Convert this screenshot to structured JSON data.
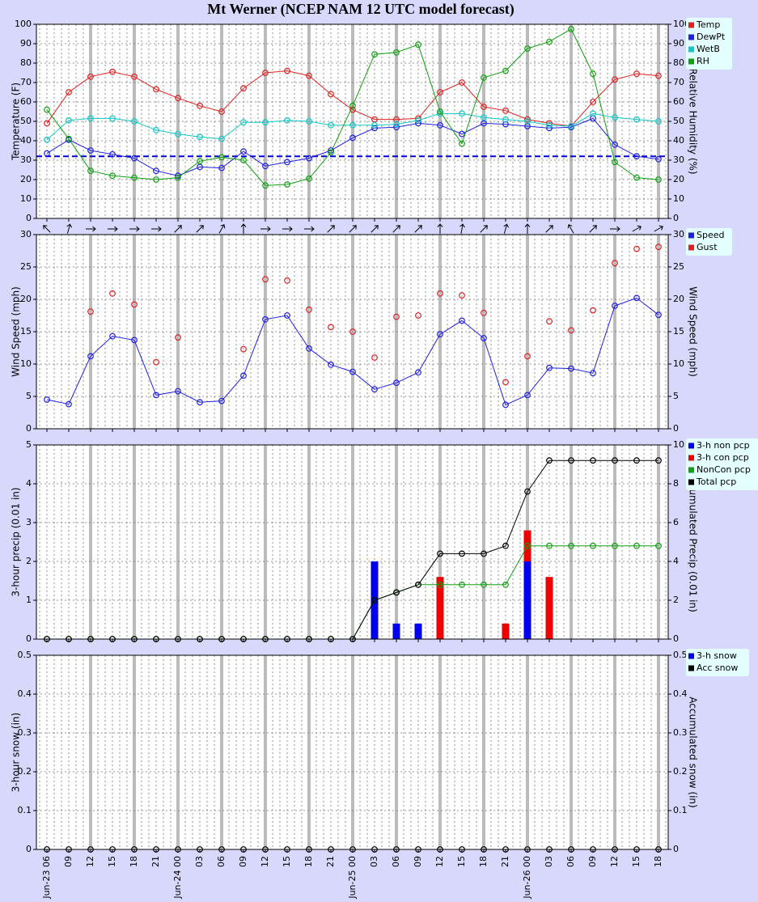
{
  "chart_data": [
    {
      "type": "line",
      "title": "Mt Werner (NCEP NAM 12 UTC model forecast)",
      "ylabel": "Temperature (F)",
      "y2label": "Relative Humidity (%)",
      "ylim": [
        0,
        100
      ],
      "yticks": [
        0,
        10,
        20,
        30,
        40,
        50,
        60,
        70,
        80,
        90,
        100
      ],
      "y2lim": [
        0,
        100
      ],
      "y2ticks": [
        0,
        10,
        20,
        30,
        40,
        50,
        60,
        70,
        80,
        90,
        100
      ],
      "hline": {
        "value": 32,
        "color": "#0000dd"
      },
      "series": [
        {
          "name": "Temp",
          "color": "#e02020",
          "type": "line",
          "values": [
            49,
            65,
            73,
            75.5,
            73,
            66.5,
            62,
            58,
            55,
            67,
            75,
            76,
            73.5,
            64,
            56,
            51,
            51,
            51.5,
            65,
            70,
            57.5,
            55.5,
            51,
            49,
            47.5,
            60,
            71.5,
            74.5,
            73.5
          ]
        },
        {
          "name": "DewPt",
          "color": "#2020e0",
          "type": "line",
          "values": [
            33.5,
            40.5,
            35,
            33,
            31,
            24.5,
            22,
            26.5,
            26,
            34.5,
            27,
            29,
            31,
            35,
            41.5,
            46.5,
            47,
            49,
            48,
            43.5,
            49,
            48.5,
            47.5,
            46.5,
            47,
            51.5,
            38,
            32,
            30.5
          ]
        },
        {
          "name": "WetB",
          "color": "#10c8c8",
          "type": "line",
          "values": [
            40.5,
            50.5,
            51.5,
            51.5,
            50,
            45.5,
            43.5,
            42,
            41,
            49.5,
            49.5,
            50.5,
            50,
            48,
            48,
            48,
            48.5,
            50.5,
            54,
            54,
            52,
            51,
            50,
            48,
            47.5,
            54,
            52,
            51,
            50
          ]
        },
        {
          "name": "RH",
          "color": "#10a010",
          "type": "line",
          "axis": "y2",
          "values": [
            56,
            41,
            24.5,
            22,
            21,
            20,
            21,
            29.5,
            31.5,
            30,
            17,
            17.5,
            20.5,
            34,
            58,
            84.5,
            85.5,
            89.5,
            55,
            38.5,
            72.5,
            76,
            87.5,
            91,
            97.5,
            74.5,
            29,
            21,
            20
          ]
        }
      ]
    },
    {
      "type": "line",
      "ylabel": "Wind Speed (mph)",
      "y2label": "Wind Speed (mph)",
      "ylim": [
        0,
        30
      ],
      "yticks": [
        0,
        5,
        10,
        15,
        20,
        25,
        30
      ],
      "y2lim": [
        0,
        30
      ],
      "y2ticks": [
        0,
        5,
        10,
        15,
        20,
        25,
        30
      ],
      "arrow_angles": [
        315,
        15,
        90,
        90,
        90,
        90,
        45,
        45,
        30,
        0,
        90,
        90,
        90,
        45,
        45,
        45,
        45,
        45,
        0,
        10,
        45,
        15,
        0,
        45,
        330,
        45,
        90,
        60,
        60
      ],
      "series": [
        {
          "name": "Speed",
          "color": "#2020e0",
          "type": "line",
          "values": [
            4.5,
            3.8,
            11.2,
            14.3,
            13.7,
            5.2,
            5.8,
            4.1,
            4.3,
            8.2,
            16.9,
            17.5,
            12.4,
            9.9,
            8.8,
            6.1,
            7.1,
            8.7,
            14.6,
            16.7,
            14.0,
            3.7,
            5.2,
            9.4,
            9.3,
            8.6,
            19.0,
            20.2,
            17.6
          ]
        },
        {
          "name": "Gust",
          "color": "#e02020",
          "type": "scatter",
          "values": [
            null,
            null,
            18.1,
            20.9,
            19.2,
            10.3,
            14.1,
            null,
            null,
            12.3,
            23.1,
            22.9,
            18.4,
            15.7,
            15.0,
            11.0,
            17.3,
            17.5,
            20.9,
            20.6,
            17.9,
            7.2,
            11.2,
            16.6,
            15.2,
            18.3,
            25.6,
            27.8,
            28.1
          ]
        }
      ]
    },
    {
      "type": "bar",
      "ylabel": "3-hour precip (0.01 in)",
      "y2label": "Accumulated Precip (0.01 in)",
      "ylim": [
        0,
        5
      ],
      "yticks": [
        0,
        1,
        2,
        3,
        4,
        5
      ],
      "y2lim": [
        0,
        10
      ],
      "y2ticks": [
        0,
        2,
        4,
        6,
        8,
        10
      ],
      "series": [
        {
          "name": "3-h non pcp",
          "color": "#0000ee",
          "type": "bar",
          "values": [
            0,
            0,
            0,
            0,
            0,
            0,
            0,
            0,
            0,
            0,
            0,
            0,
            0,
            0,
            0,
            2.0,
            0.4,
            0.4,
            0,
            0,
            0,
            0,
            2.0,
            0,
            0,
            0,
            0,
            0,
            0
          ]
        },
        {
          "name": "3-h con pcp",
          "color": "#ee0000",
          "type": "bar",
          "values": [
            0,
            0,
            0,
            0,
            0,
            0,
            0,
            0,
            0,
            0,
            0,
            0,
            0,
            0,
            0,
            0,
            0,
            0,
            1.6,
            0,
            0,
            0.4,
            0.8,
            1.6,
            0,
            0,
            0,
            0,
            0
          ]
        },
        {
          "name": "NonCon pcp",
          "color": "#10a010",
          "type": "line",
          "axis": "y2",
          "values": [
            0,
            0,
            0,
            0,
            0,
            0,
            0,
            0,
            0,
            0,
            0,
            0,
            0,
            0,
            0,
            2.0,
            2.4,
            2.8,
            2.8,
            2.8,
            2.8,
            2.8,
            4.8,
            4.8,
            4.8,
            4.8,
            4.8,
            4.8,
            4.8
          ]
        },
        {
          "name": "Total pcp",
          "color": "#000000",
          "type": "line",
          "axis": "y2",
          "values": [
            0,
            0,
            0,
            0,
            0,
            0,
            0,
            0,
            0,
            0,
            0,
            0,
            0,
            0,
            0,
            2.0,
            2.4,
            2.8,
            4.4,
            4.4,
            4.4,
            4.8,
            7.6,
            9.2,
            9.2,
            9.2,
            9.2,
            9.2,
            9.2
          ]
        }
      ]
    },
    {
      "type": "bar",
      "ylabel": "3-hour snow (in)",
      "y2label": "Accumulated snow (in)",
      "ylim": [
        0,
        0.5
      ],
      "yticks": [
        0,
        0.1,
        0.2,
        0.3,
        0.4,
        0.5
      ],
      "y2lim": [
        0,
        0.5
      ],
      "y2ticks": [
        0,
        0.1,
        0.2,
        0.3,
        0.4,
        0.5
      ],
      "categories": [
        "Jun-23 06",
        "09",
        "12",
        "15",
        "18",
        "21",
        "Jun-24 00",
        "03",
        "06",
        "09",
        "12",
        "15",
        "18",
        "21",
        "Jun-25 00",
        "03",
        "06",
        "09",
        "12",
        "15",
        "18",
        "21",
        "Jun-26 00",
        "03",
        "06",
        "09",
        "12",
        "15",
        "18"
      ],
      "series": [
        {
          "name": "3-h snow",
          "color": "#0000ee",
          "type": "bar",
          "values": [
            0,
            0,
            0,
            0,
            0,
            0,
            0,
            0,
            0,
            0,
            0,
            0,
            0,
            0,
            0,
            0,
            0,
            0,
            0,
            0,
            0,
            0,
            0,
            0,
            0,
            0,
            0,
            0,
            0
          ]
        },
        {
          "name": "Acc snow",
          "color": "#000000",
          "type": "line",
          "axis": "y2",
          "values": [
            0,
            0,
            0,
            0,
            0,
            0,
            0,
            0,
            0,
            0,
            0,
            0,
            0,
            0,
            0,
            0,
            0,
            0,
            0,
            0,
            0,
            0,
            0,
            0,
            0,
            0,
            0,
            0,
            0
          ]
        }
      ]
    }
  ]
}
